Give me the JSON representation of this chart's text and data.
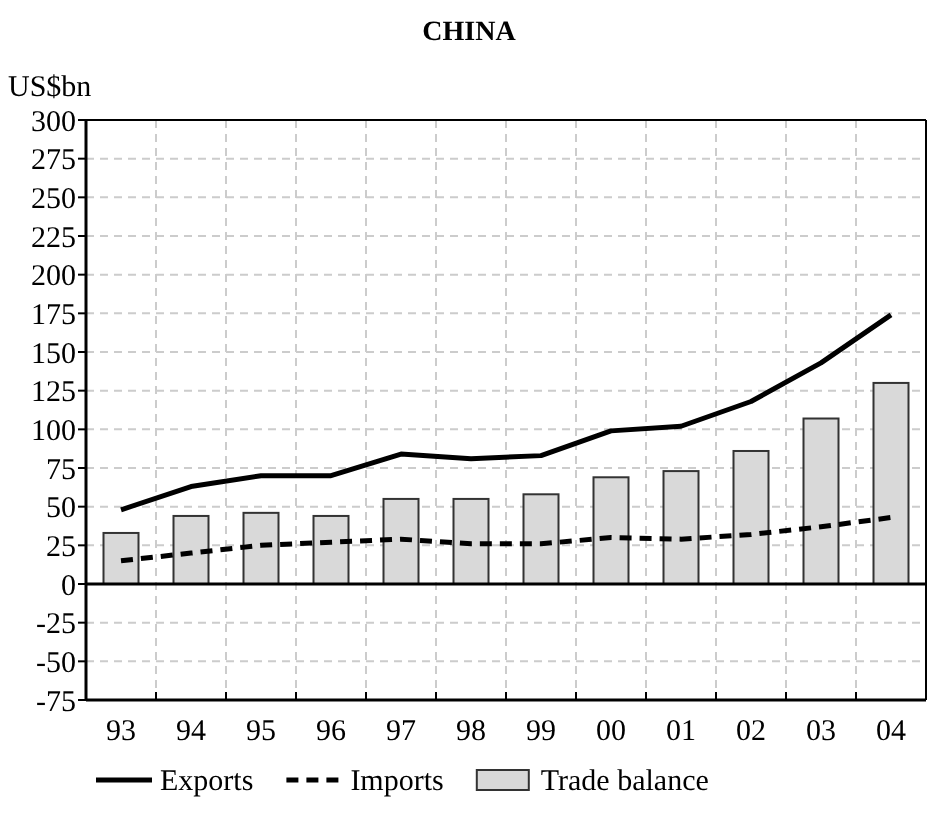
{
  "chart_data": {
    "type": "bar",
    "title": "CHINA",
    "ylabel": "US$bn",
    "categories": [
      "93",
      "94",
      "95",
      "96",
      "97",
      "98",
      "99",
      "00",
      "01",
      "02",
      "03",
      "04"
    ],
    "series": [
      {
        "name": "Exports",
        "type": "line",
        "color": "#000000",
        "line_style": "solid",
        "values": [
          48,
          63,
          70,
          70,
          84,
          81,
          83,
          99,
          102,
          118,
          143,
          174
        ]
      },
      {
        "name": "Imports",
        "type": "line",
        "color": "#000000",
        "line_style": "dashed",
        "values": [
          15,
          20,
          25,
          27,
          29,
          26,
          26,
          30,
          29,
          32,
          37,
          43
        ]
      },
      {
        "name": "Trade balance",
        "color": "#d9d9d9",
        "values": [
          33,
          44,
          46,
          44,
          55,
          55,
          58,
          69,
          73,
          86,
          107,
          130
        ]
      }
    ],
    "ylim": [
      -75,
      300
    ],
    "yticks": [
      -75,
      -50,
      -25,
      0,
      25,
      50,
      75,
      100,
      125,
      150,
      175,
      200,
      225,
      250,
      275,
      300
    ],
    "grid": true,
    "legend": "bottom"
  }
}
